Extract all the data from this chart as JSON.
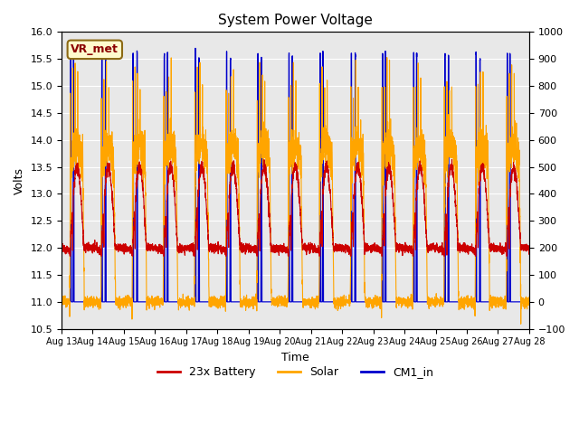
{
  "title": "System Power Voltage",
  "xlabel": "Time",
  "ylabel_left": "Volts",
  "ylim_left": [
    10.5,
    16.0
  ],
  "ylim_right": [
    -100,
    1000
  ],
  "yticks_left": [
    10.5,
    11.0,
    11.5,
    12.0,
    12.5,
    13.0,
    13.5,
    14.0,
    14.5,
    15.0,
    15.5,
    16.0
  ],
  "yticks_right": [
    -100,
    0,
    100,
    200,
    300,
    400,
    500,
    600,
    700,
    800,
    900,
    1000
  ],
  "x_tick_labels": [
    "Aug 13",
    "Aug 14",
    "Aug 15",
    "Aug 16",
    "Aug 17",
    "Aug 18",
    "Aug 19",
    "Aug 20",
    "Aug 21",
    "Aug 22",
    "Aug 23",
    "Aug 24",
    "Aug 25",
    "Aug 26",
    "Aug 27",
    "Aug 28"
  ],
  "color_battery": "#cc0000",
  "color_solar": "#ffa500",
  "color_cm1": "#0000cc",
  "legend_labels": [
    "23x Battery",
    "Solar",
    "CM1_in"
  ],
  "annotation_text": "VR_met",
  "background_color": "#ffffff",
  "plot_bg_color": "#e8e8e8",
  "grid_color": "#ffffff",
  "n_days": 15,
  "pts_per_day": 288
}
